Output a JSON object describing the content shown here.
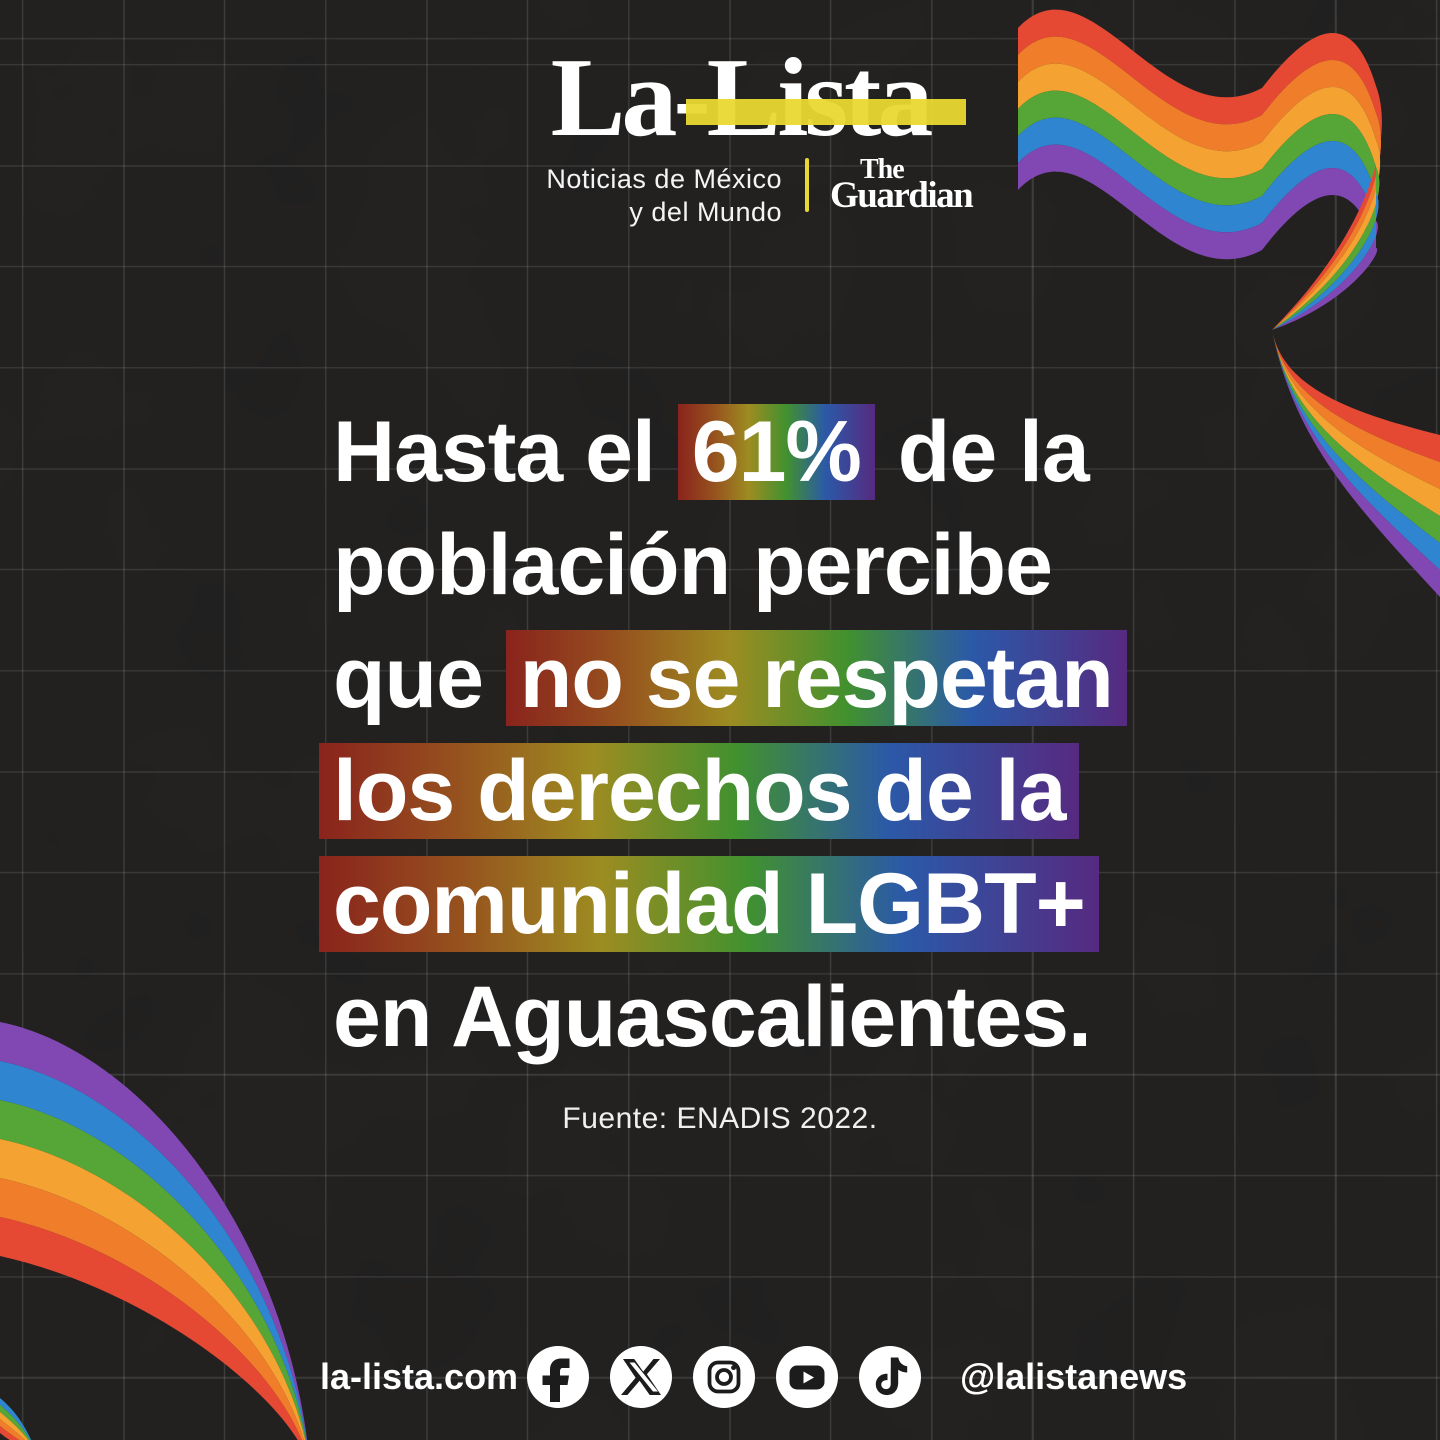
{
  "page": {
    "background": "#242322",
    "grid_color": "rgba(255,255,255,0.12)"
  },
  "header": {
    "wordmark": "La-Lista",
    "tagline_line1": "Noticias de México",
    "tagline_line2": "y del Mundo",
    "partner_top": "The",
    "partner_bottom": "Guardian"
  },
  "main": {
    "lines": [
      {
        "pre": "Hasta el ",
        "hl": "61%",
        "post": " de la"
      },
      {
        "pre": "población percibe"
      },
      {
        "pre": "que ",
        "hl": "no se respetan"
      },
      {
        "hl": "los derechos de la"
      },
      {
        "hl": "comunidad LGBT+"
      },
      {
        "pre": "en Aguascalientes."
      }
    ],
    "source": "Fuente: ENADIS 2022."
  },
  "footer": {
    "website": "la-lista.com",
    "handle": "@lalistanews",
    "social_icons": [
      "facebook-icon",
      "x-icon",
      "instagram-icon",
      "youtube-icon",
      "tiktok-icon"
    ]
  },
  "colors": {
    "accent_yellow": "#e9d832",
    "text_white": "#ffffff",
    "ribbon_rainbow": [
      "#e54934",
      "#f07d2a",
      "#f4a333",
      "#55a636",
      "#2f85d0",
      "#8148b3"
    ],
    "highlight_bar_gradient": [
      "#8a231d",
      "#96511e",
      "#9d8c21",
      "#41912f",
      "#2b59a8",
      "#562a80"
    ]
  }
}
